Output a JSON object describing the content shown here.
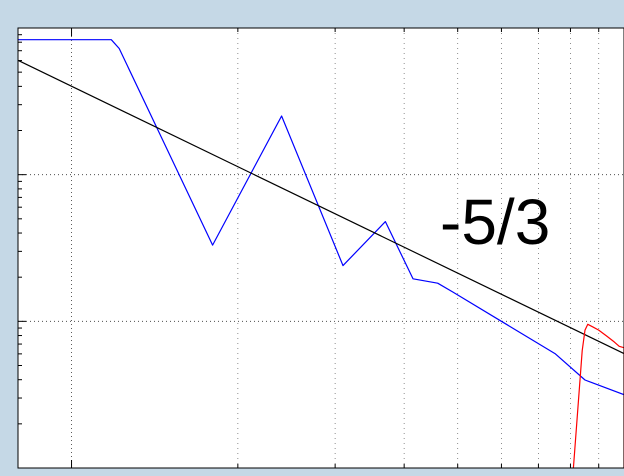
{
  "chart_data": {
    "type": "line",
    "title": "",
    "xlabel": "",
    "ylabel": "",
    "xscale": "log",
    "yscale": "log",
    "xlim": [
      0.8,
      10
    ],
    "ylim_decades": [
      0,
      3
    ],
    "grid": true,
    "annotation": {
      "text": "-5/3"
    },
    "series": [
      {
        "color": "#0000ff",
        "style": "solid",
        "points": [
          [
            0.8,
            2.92
          ],
          [
            1.0,
            2.92
          ],
          [
            1.18,
            2.92
          ],
          [
            1.22,
            2.86
          ],
          [
            1.8,
            1.52
          ],
          [
            2.4,
            2.4
          ],
          [
            3.1,
            1.38
          ],
          [
            3.7,
            1.68
          ],
          [
            4.15,
            1.29
          ],
          [
            4.6,
            1.26
          ],
          [
            4.9,
            1.2
          ],
          [
            6.0,
            1.0
          ],
          [
            7.5,
            0.78
          ],
          [
            8.5,
            0.6
          ],
          [
            10.0,
            0.5
          ]
        ]
      },
      {
        "color": "#000000",
        "style": "solid",
        "points": [
          [
            0.8,
            2.78
          ],
          [
            10.0,
            0.78
          ]
        ]
      },
      {
        "color": "#ff0000",
        "style": "solid",
        "points": [
          [
            8.1,
            0.0
          ],
          [
            8.4,
            0.8
          ],
          [
            8.5,
            0.94
          ],
          [
            8.6,
            0.98
          ],
          [
            8.8,
            0.96
          ],
          [
            9.0,
            0.94
          ],
          [
            9.3,
            0.9
          ],
          [
            9.6,
            0.86
          ],
          [
            9.8,
            0.83
          ],
          [
            10.0,
            0.82
          ],
          [
            10.0,
            0.5
          ],
          [
            10.0,
            0.0
          ]
        ]
      }
    ]
  }
}
